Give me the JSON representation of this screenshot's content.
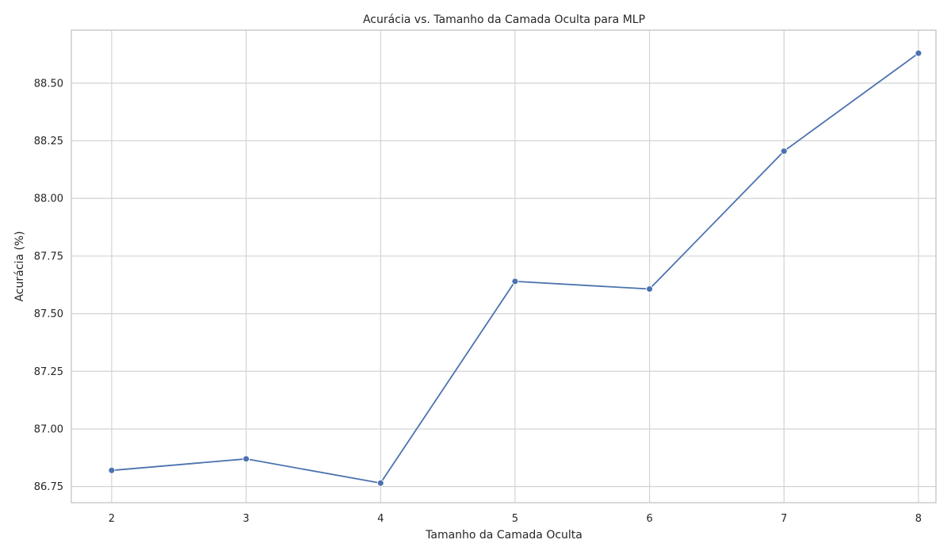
{
  "chart_data": {
    "type": "line",
    "title": "Acurácia vs. Tamanho da Camada Oculta para MLP",
    "xlabel": "Tamanho da Camada Oculta",
    "ylabel": "Acurácia (%)",
    "x": [
      2,
      3,
      4,
      5,
      6,
      7,
      8
    ],
    "x_ticks": [
      "2",
      "3",
      "4",
      "5",
      "6",
      "7",
      "8"
    ],
    "y_ticks": [
      "86.75",
      "87.00",
      "87.25",
      "87.50",
      "87.75",
      "88.00",
      "88.25",
      "88.50"
    ],
    "xlim": [
      1.7,
      8.13
    ],
    "ylim": [
      86.68,
      88.73
    ],
    "grid": true,
    "series": [
      {
        "values": [
          86.82,
          86.87,
          86.765,
          87.64,
          87.607,
          88.205,
          88.63
        ],
        "color": "#4c72b0",
        "marker": "circle"
      }
    ]
  }
}
